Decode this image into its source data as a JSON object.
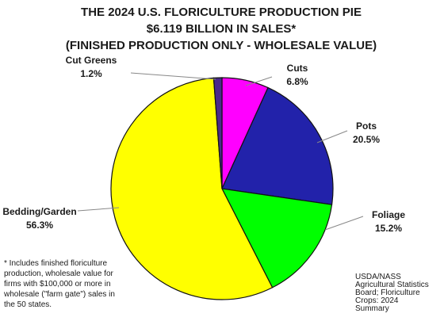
{
  "chart_data": {
    "type": "pie",
    "title": [
      "THE 2024 U.S. FLORICULTURE PRODUCTION PIE",
      "$6.119 BILLION IN SALES*",
      "(FINISHED PRODUCTION ONLY - WHOLESALE VALUE)"
    ],
    "slices": [
      {
        "name": "Cuts",
        "value": 6.8,
        "pct_label": "6.8%",
        "color": "#ff00ff"
      },
      {
        "name": "Pots",
        "value": 20.5,
        "pct_label": "20.5%",
        "color": "#2222aa"
      },
      {
        "name": "Foliage",
        "value": 15.2,
        "pct_label": "15.2%",
        "color": "#00ff00"
      },
      {
        "name": "Bedding/Garden",
        "value": 56.3,
        "pct_label": "56.3%",
        "color": "#ffff00"
      },
      {
        "name": "Cut Greens",
        "value": 1.2,
        "pct_label": "1.2%",
        "color": "#4a2a8a"
      }
    ],
    "footnote": [
      "* Includes finished floriculture",
      "production, wholesale value for",
      "firms with $100,000 or more in",
      "wholesale (\"farm gate\") sales in",
      "the 50 states."
    ],
    "source": [
      "USDA/NASS",
      "Agricultural Statistics",
      "Board; Floriculture",
      "Crops: 2024",
      "Summary"
    ]
  }
}
